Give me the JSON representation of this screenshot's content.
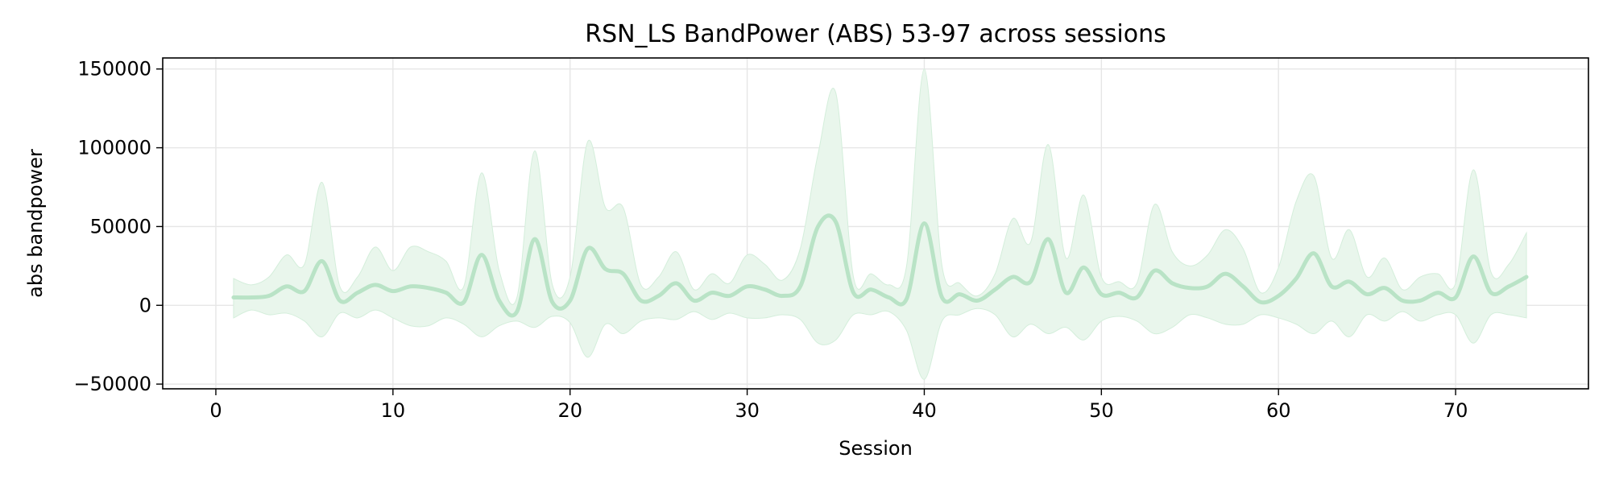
{
  "chart_data": {
    "type": "line",
    "title": "RSN_LS BandPower (ABS) 53-97 across sessions",
    "xlabel": "Session",
    "ylabel": "abs bandpower",
    "xlim": [
      -3,
      77.5
    ],
    "ylim": [
      -53000,
      157000
    ],
    "xticks": [
      0,
      10,
      20,
      30,
      40,
      50,
      60,
      70
    ],
    "yticks": [
      -50000,
      0,
      50000,
      100000,
      150000
    ],
    "xtick_labels": [
      "0",
      "10",
      "20",
      "30",
      "40",
      "50",
      "60",
      "70"
    ],
    "ytick_labels": [
      "−50000",
      "0",
      "50000",
      "100000",
      "150000"
    ],
    "grid": true,
    "line_color": "#b9e3c6",
    "band_color": "#e9f6ec",
    "series": [
      {
        "x": [
          1,
          2,
          3,
          4,
          5,
          6,
          7,
          8,
          9,
          10,
          11,
          12,
          13,
          14,
          15,
          16,
          17,
          18,
          19,
          20,
          21,
          22,
          23,
          24,
          25,
          26,
          27,
          28,
          29,
          30,
          31,
          32,
          33,
          34,
          35,
          36,
          37,
          38,
          39,
          40,
          41,
          42,
          43,
          44,
          45,
          46,
          47,
          48,
          49,
          50,
          51,
          52,
          53,
          54,
          55,
          56,
          57,
          58,
          59,
          60,
          61,
          62,
          63,
          64,
          65,
          66,
          67,
          68,
          69,
          70,
          71,
          72,
          73,
          74
        ],
        "y": [
          5000,
          5000,
          6000,
          12000,
          9000,
          28000,
          3000,
          8000,
          13000,
          9000,
          12000,
          11000,
          8000,
          2000,
          32000,
          3000,
          -4000,
          42000,
          2000,
          3000,
          36000,
          23000,
          20000,
          3000,
          6000,
          14000,
          3000,
          8000,
          6000,
          12000,
          10000,
          6000,
          12000,
          50000,
          53000,
          8000,
          10000,
          5000,
          4000,
          52000,
          5000,
          7000,
          3000,
          10000,
          18000,
          15000,
          42000,
          8000,
          24000,
          7000,
          8000,
          5000,
          22000,
          14000,
          11000,
          12000,
          20000,
          12000,
          2000,
          6000,
          17000,
          33000,
          12000,
          15000,
          7000,
          11000,
          3000,
          3000,
          8000,
          5000,
          31000,
          8000,
          12000,
          18000
        ],
        "upper": [
          17000,
          13000,
          18000,
          32000,
          26000,
          78000,
          12000,
          18000,
          37000,
          22000,
          37000,
          34000,
          28000,
          12000,
          84000,
          22000,
          5000,
          98000,
          13000,
          18000,
          104000,
          62000,
          62000,
          13000,
          18000,
          34000,
          10000,
          20000,
          14000,
          32000,
          26000,
          16000,
          36000,
          96000,
          135000,
          18000,
          20000,
          13000,
          25000,
          150000,
          25000,
          14000,
          6000,
          20000,
          55000,
          40000,
          102000,
          30000,
          70000,
          18000,
          15000,
          14000,
          64000,
          34000,
          25000,
          32000,
          48000,
          36000,
          8000,
          24000,
          66000,
          82000,
          30000,
          48000,
          18000,
          30000,
          10000,
          18000,
          20000,
          14000,
          86000,
          21000,
          26000,
          46000
        ],
        "lower": [
          -8000,
          -3000,
          -6000,
          -5000,
          -10000,
          -20000,
          -5000,
          -8000,
          -3000,
          -8000,
          -13000,
          -13000,
          -8000,
          -12000,
          -20000,
          -13000,
          -10000,
          -14000,
          -7000,
          -11000,
          -33000,
          -12000,
          -18000,
          -10000,
          -8000,
          -9000,
          -4000,
          -9000,
          -5000,
          -8000,
          -8000,
          -6000,
          -9000,
          -24000,
          -22000,
          -6000,
          -6000,
          -4000,
          -16000,
          -47000,
          -10000,
          -6000,
          -2000,
          -6000,
          -20000,
          -12000,
          -18000,
          -14000,
          -22000,
          -10000,
          -7000,
          -10000,
          -18000,
          -14000,
          -6000,
          -8000,
          -12000,
          -12000,
          -6000,
          -8000,
          -12000,
          -18000,
          -10000,
          -20000,
          -6000,
          -10000,
          -4000,
          -10000,
          -6000,
          -6000,
          -24000,
          -6000,
          -6000,
          -8000
        ]
      }
    ]
  }
}
